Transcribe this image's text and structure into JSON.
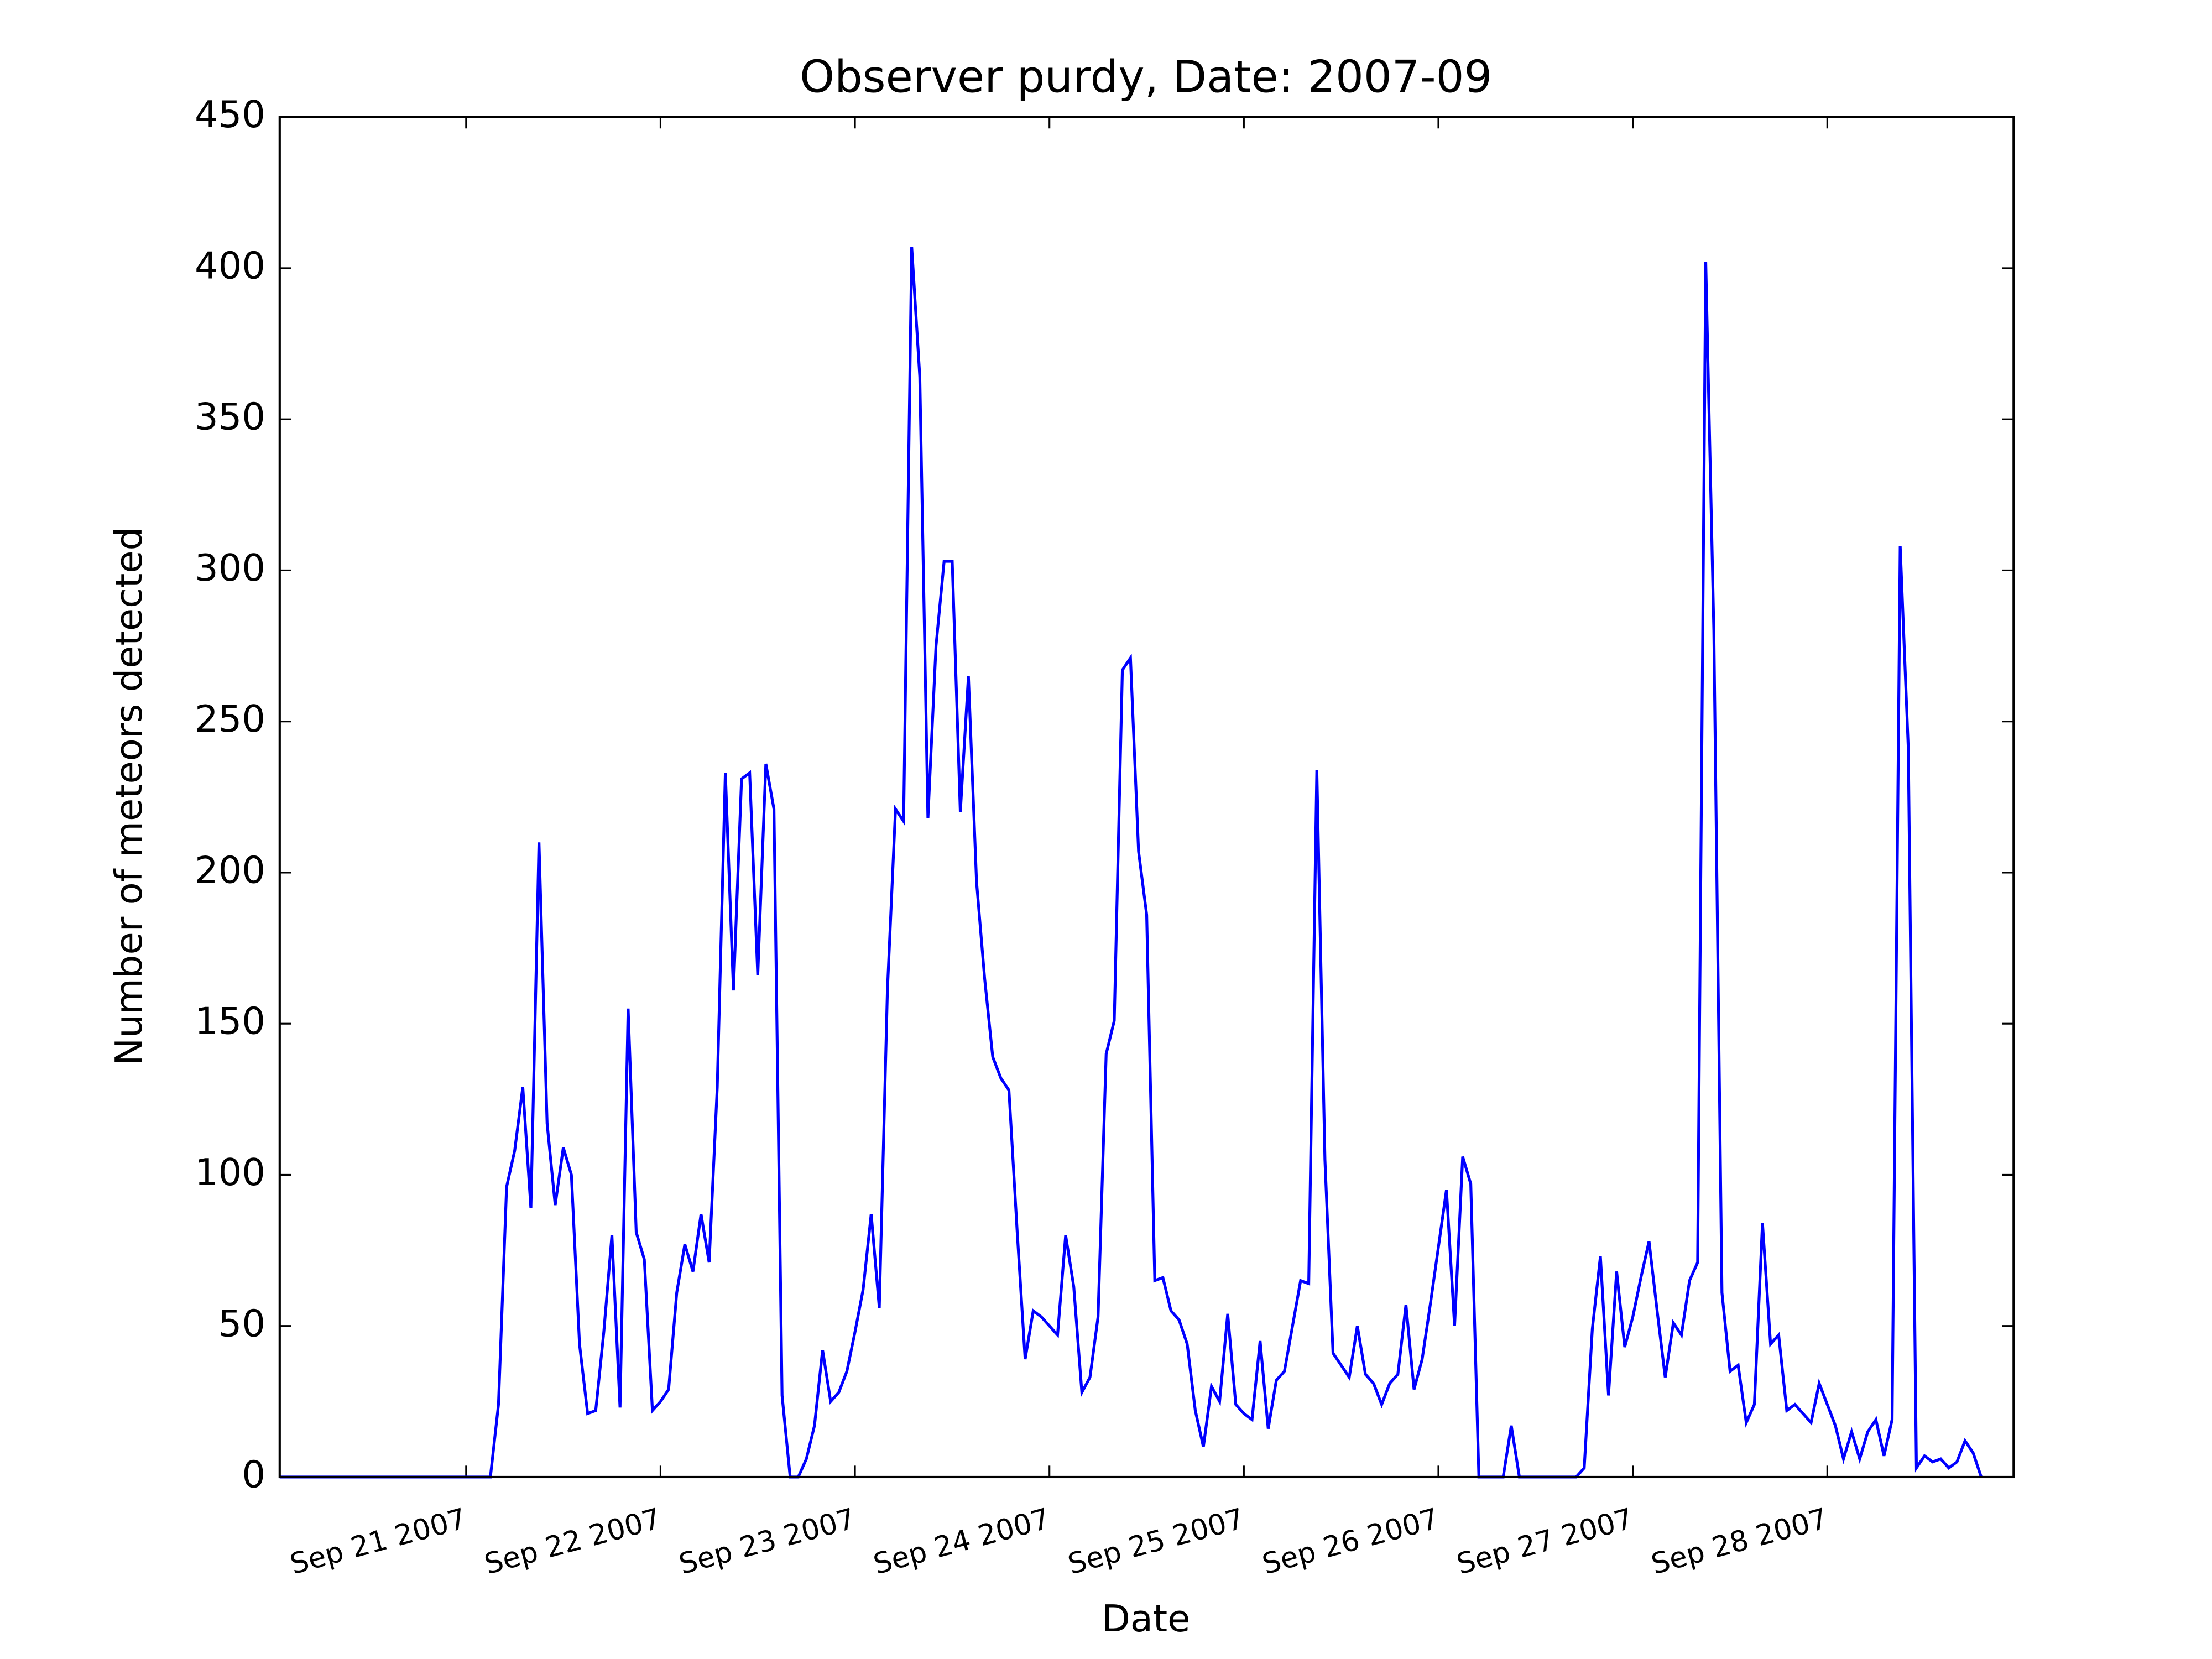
{
  "chart_data": {
    "type": "line",
    "title": "Observer purdy, Date: 2007-09",
    "x_label": "Date",
    "y_label": "Number of meteors detected",
    "color": "#0000ff",
    "x": [
      -23,
      -22,
      -21,
      -20,
      -19,
      -18,
      -17,
      -16,
      -15,
      -14,
      -13,
      -12,
      -11,
      -10,
      -9,
      -8,
      -7,
      -6,
      -5,
      -4,
      -3,
      -2,
      -1,
      0,
      1,
      2,
      3,
      4,
      5,
      6,
      7,
      8,
      9,
      10,
      11,
      12,
      13,
      14,
      15,
      16,
      17,
      18,
      19,
      20,
      21,
      22,
      23,
      24,
      25,
      26,
      27,
      28,
      29,
      30,
      31,
      32,
      33,
      34,
      35,
      36,
      37,
      38,
      39,
      40,
      41,
      42,
      43,
      44,
      45,
      46,
      47,
      48,
      49,
      50,
      51,
      52,
      53,
      54,
      55,
      56,
      57,
      58,
      59,
      60,
      61,
      62,
      63,
      64,
      65,
      66,
      67,
      68,
      69,
      70,
      71,
      72,
      73,
      74,
      75,
      76,
      77,
      78,
      79,
      80,
      81,
      82,
      83,
      84,
      85,
      86,
      87,
      88,
      89,
      90,
      91,
      92,
      93,
      94,
      95,
      96,
      97,
      98,
      99,
      100,
      101,
      102,
      103,
      104,
      105,
      106,
      107,
      108,
      109,
      110,
      111,
      112,
      113,
      114,
      115,
      116,
      117,
      118,
      119,
      120,
      121,
      122,
      123,
      124,
      125,
      126,
      127,
      128,
      129,
      130,
      131,
      132,
      133,
      134,
      135,
      136,
      137,
      138,
      139,
      140,
      141,
      142,
      143,
      144,
      145,
      146,
      147,
      148,
      149,
      150,
      151,
      152,
      153,
      154,
      155,
      156,
      157,
      158,
      159,
      160,
      161,
      162,
      163,
      164,
      165,
      166,
      167,
      168,
      169,
      170,
      171,
      172,
      173,
      174,
      175,
      176,
      177,
      178,
      179,
      180,
      181,
      182,
      183,
      184,
      185,
      186,
      187
    ],
    "values": [
      0,
      0,
      0,
      0,
      0,
      0,
      0,
      0,
      0,
      0,
      0,
      0,
      0,
      0,
      0,
      0,
      0,
      0,
      0,
      0,
      0,
      0,
      0,
      0,
      0,
      0,
      0,
      24,
      96,
      108,
      129,
      89,
      210,
      117,
      90,
      109,
      100,
      44,
      21,
      22,
      48,
      80,
      23,
      155,
      81,
      72,
      22,
      25,
      29,
      61,
      77,
      68,
      87,
      71,
      129,
      233,
      161,
      231,
      233,
      166,
      236,
      221,
      27,
      0,
      0,
      6,
      17,
      42,
      25,
      28,
      35,
      48,
      62,
      87,
      56,
      161,
      221,
      217,
      407,
      364,
      218,
      275,
      303,
      303,
      220,
      265,
      197,
      165,
      139,
      132,
      128,
      82,
      39,
      55,
      53,
      50,
      47,
      80,
      63,
      28,
      33,
      53,
      140,
      151,
      267,
      271,
      207,
      186,
      65,
      66,
      55,
      52,
      44,
      22,
      10,
      30,
      25,
      54,
      24,
      21,
      19,
      45,
      16,
      32,
      35,
      50,
      65,
      64,
      234,
      105,
      41,
      37,
      33,
      50,
      34,
      31,
      24,
      31,
      34,
      57,
      29,
      39,
      57,
      76,
      95,
      50,
      106,
      97,
      0,
      0,
      0,
      0,
      17,
      0,
      0,
      0,
      0,
      0,
      0,
      0,
      0,
      3,
      49,
      73,
      27,
      68,
      43,
      53,
      66,
      78,
      55,
      33,
      51,
      47,
      65,
      71,
      402,
      280,
      61,
      35,
      37,
      18,
      24,
      84,
      44,
      47,
      22,
      24,
      21,
      18,
      31,
      24,
      17,
      6,
      15,
      6,
      15,
      19,
      7,
      19,
      308,
      241,
      3,
      7,
      5,
      6,
      3,
      5,
      12,
      8,
      0
    ],
    "xlim": [
      -23,
      191
    ],
    "ylim": [
      0,
      450
    ],
    "xticks": [
      {
        "value": 0,
        "label": "Sep 21 2007"
      },
      {
        "value": 24,
        "label": "Sep 22 2007"
      },
      {
        "value": 48,
        "label": "Sep 23 2007"
      },
      {
        "value": 72,
        "label": "Sep 24 2007"
      },
      {
        "value": 96,
        "label": "Sep 25 2007"
      },
      {
        "value": 120,
        "label": "Sep 26 2007"
      },
      {
        "value": 144,
        "label": "Sep 27 2007"
      },
      {
        "value": 168,
        "label": "Sep 28 2007"
      }
    ],
    "yticks": [
      0,
      50,
      100,
      150,
      200,
      250,
      300,
      350,
      400,
      450
    ],
    "grid": false
  }
}
